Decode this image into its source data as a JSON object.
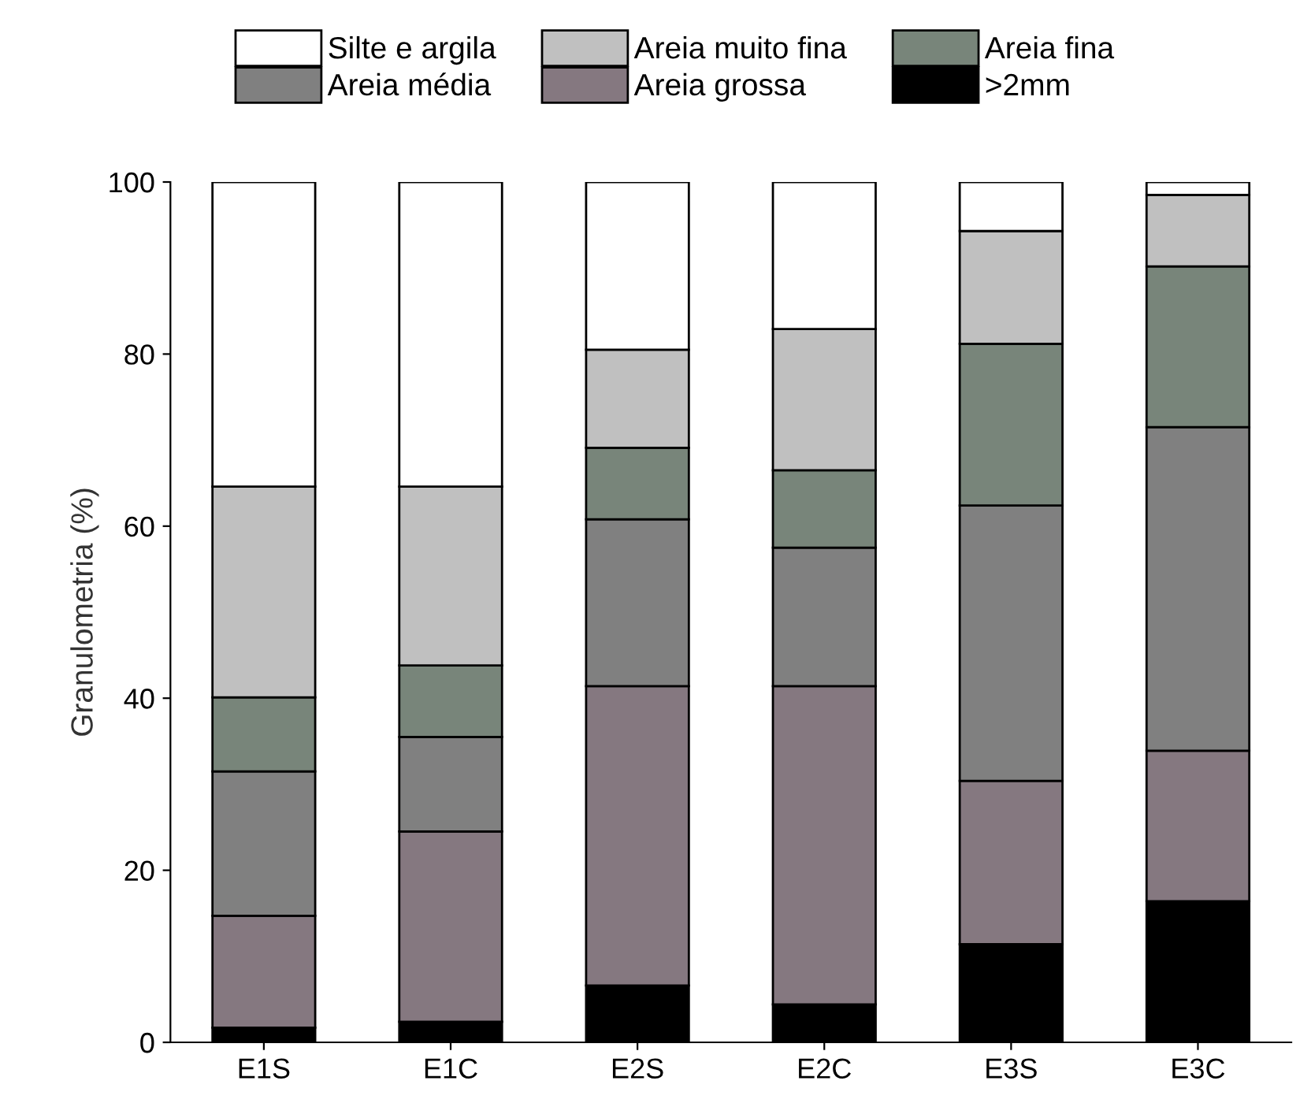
{
  "chart_data": {
    "type": "bar",
    "stacked": true,
    "ylabel": "Granulometria (%)",
    "categories": [
      "E1S",
      "E1C",
      "E2S",
      "E2C",
      "E3S",
      "E3C"
    ],
    "series": [
      {
        "name": ">2mm",
        "color": "#000000",
        "values": [
          1.7,
          2.4,
          6.6,
          4.4,
          11.4,
          16.4
        ]
      },
      {
        "name": "Areia grossa",
        "color": "#857880",
        "values": [
          13.0,
          22.1,
          34.8,
          37.0,
          19.0,
          17.5
        ]
      },
      {
        "name": "Areia média",
        "color": "#808080",
        "values": [
          16.8,
          11.0,
          19.4,
          16.1,
          32.0,
          37.6
        ]
      },
      {
        "name": "Areia fina",
        "color": "#78857a",
        "values": [
          8.6,
          8.3,
          8.3,
          9.0,
          18.8,
          18.7
        ]
      },
      {
        "name": "Areia muito fina",
        "color": "#c0c0c0",
        "values": [
          24.5,
          20.8,
          11.4,
          16.4,
          13.1,
          8.3
        ]
      },
      {
        "name": "Silte e argila",
        "color": "#ffffff",
        "values": [
          35.4,
          35.4,
          19.5,
          17.1,
          5.7,
          1.5
        ]
      }
    ],
    "ylim": [
      0,
      100
    ],
    "yticks": [
      0,
      20,
      40,
      60,
      80,
      100
    ],
    "grid": false,
    "legend": "top"
  }
}
